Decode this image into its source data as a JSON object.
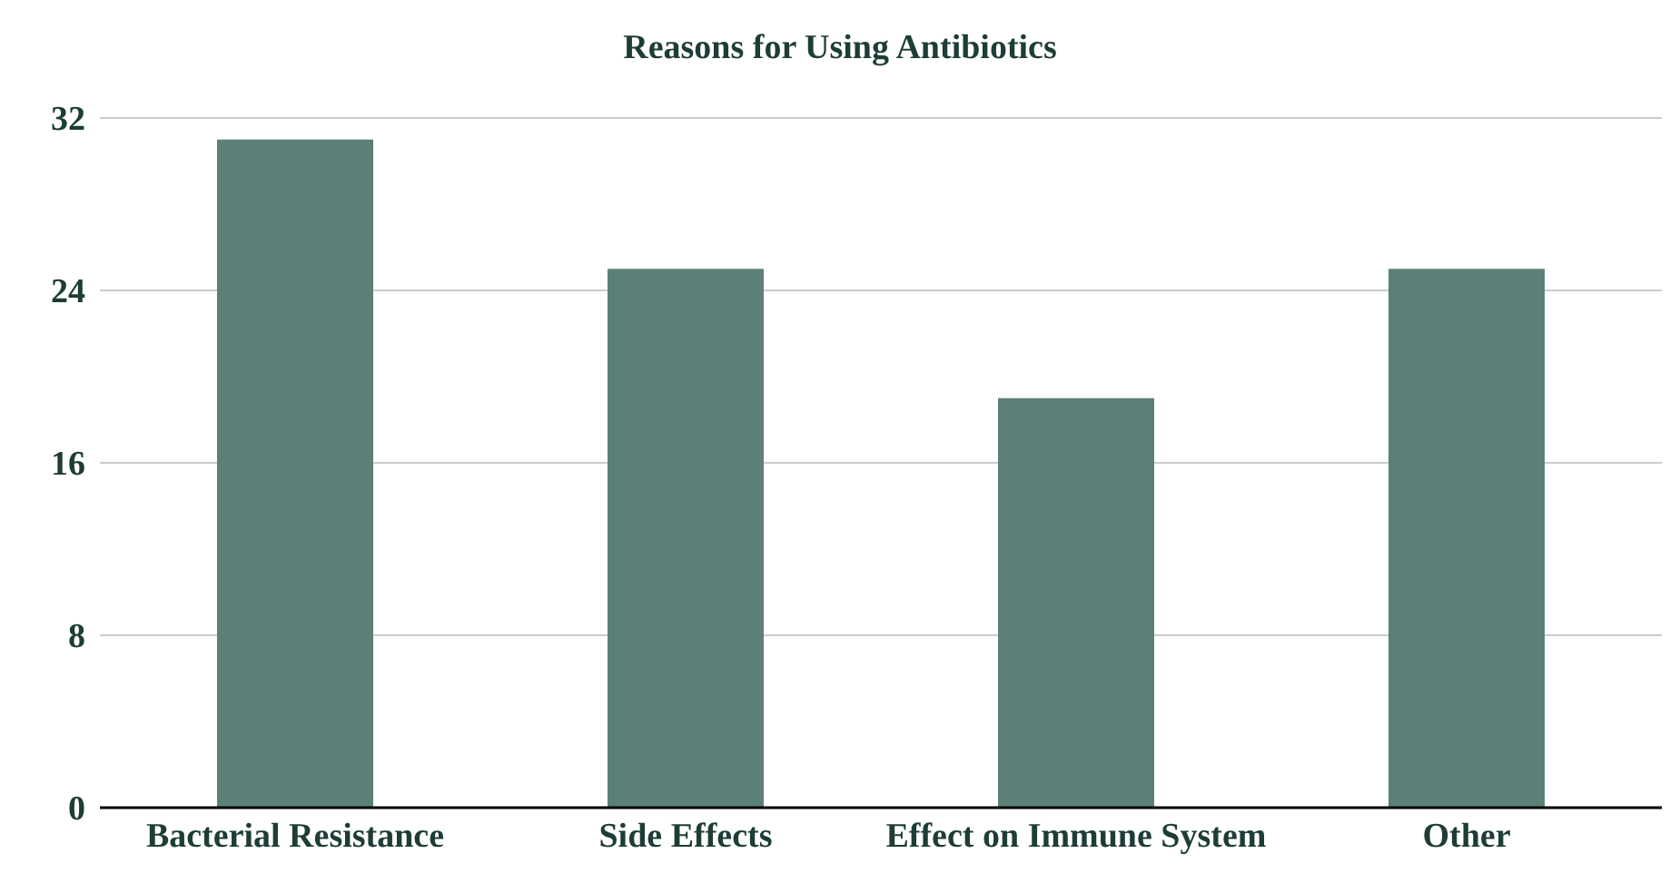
{
  "chart_data": {
    "type": "bar",
    "title": "Reasons for Using Antibiotics",
    "categories": [
      "Bacterial Resistance",
      "Side Effects",
      "Effect on Immune System",
      "Other"
    ],
    "values": [
      31,
      25,
      19,
      25
    ],
    "color": "#5b8078",
    "ylim": [
      0,
      32
    ],
    "yticks": [
      0,
      8,
      16,
      24,
      32
    ],
    "grid": "y"
  }
}
